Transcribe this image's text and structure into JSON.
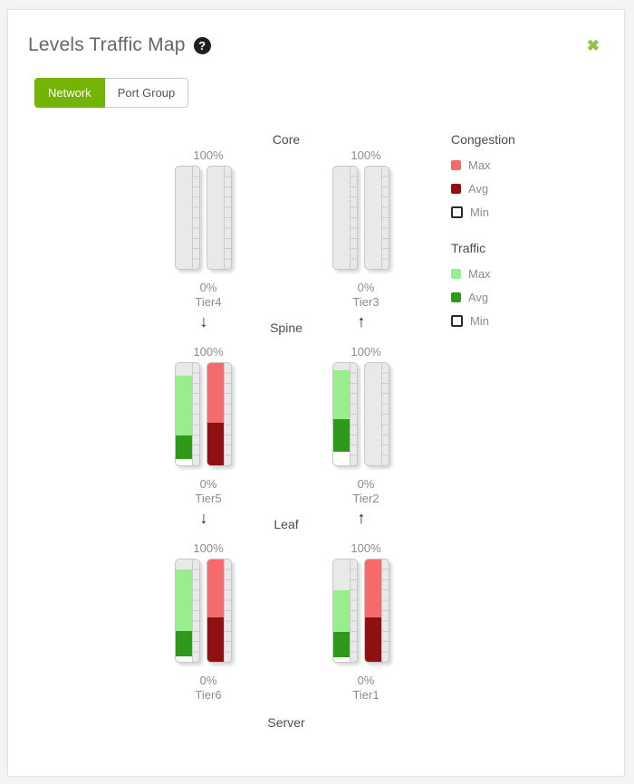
{
  "dialog": {
    "title": "Levels Traffic Map",
    "help_glyph": "?",
    "close_glyph": "✖"
  },
  "tabs": [
    {
      "label": "Network",
      "active": true
    },
    {
      "label": "Port Group",
      "active": false
    }
  ],
  "legend": {
    "groups": [
      {
        "title": "Congestion",
        "items": [
          {
            "label": "Max",
            "color": "#f56b6b",
            "outlined": false
          },
          {
            "label": "Avg",
            "color": "#8e1010",
            "outlined": false
          },
          {
            "label": "Min",
            "color": "#ffffff",
            "outlined": true
          }
        ]
      },
      {
        "title": "Traffic",
        "items": [
          {
            "label": "Max",
            "color": "#98ee8e",
            "outlined": false
          },
          {
            "label": "Avg",
            "color": "#2f991c",
            "outlined": false
          },
          {
            "label": "Min",
            "color": "#ffffff",
            "outlined": true
          }
        ]
      }
    ]
  },
  "map": {
    "sequence": [
      {
        "type": "label",
        "text": "Core"
      },
      {
        "type": "gauges",
        "items": [
          {
            "tier": "Tier4",
            "top_label": "100%",
            "bottom_label": "0%",
            "traffic": {
              "max": 0,
              "avg": 0,
              "min": 0
            },
            "congestion": {
              "max": 0,
              "avg": 0,
              "min": 0
            }
          },
          {
            "tier": "Tier3",
            "top_label": "100%",
            "bottom_label": "0%",
            "traffic": {
              "max": 0,
              "avg": 0,
              "min": 0
            },
            "congestion": {
              "max": 0,
              "avg": 0,
              "min": 0
            }
          }
        ]
      },
      {
        "type": "separator",
        "text": "Spine",
        "left_arrow": "↓",
        "right_arrow": "↑"
      },
      {
        "type": "gauges",
        "items": [
          {
            "tier": "Tier5",
            "top_label": "100%",
            "bottom_label": "0%",
            "traffic": {
              "max": 88,
              "avg": 29,
              "min": 6
            },
            "congestion": {
              "max": 100,
              "avg": 42,
              "min": 0
            }
          },
          {
            "tier": "Tier2",
            "top_label": "100%",
            "bottom_label": "0%",
            "traffic": {
              "max": 93,
              "avg": 45,
              "min": 13
            },
            "congestion": {
              "max": 0,
              "avg": 0,
              "min": 0
            }
          }
        ]
      },
      {
        "type": "separator",
        "text": "Leaf",
        "left_arrow": "↓",
        "right_arrow": "↑"
      },
      {
        "type": "gauges",
        "items": [
          {
            "tier": "Tier6",
            "top_label": "100%",
            "bottom_label": "0%",
            "traffic": {
              "max": 90,
              "avg": 30,
              "min": 5
            },
            "congestion": {
              "max": 100,
              "avg": 43,
              "min": 0
            }
          },
          {
            "tier": "Tier1",
            "top_label": "100%",
            "bottom_label": "0%",
            "traffic": {
              "max": 70,
              "avg": 29,
              "min": 4
            },
            "congestion": {
              "max": 100,
              "avg": 43,
              "min": 0
            }
          }
        ]
      },
      {
        "type": "label",
        "text": "Server"
      }
    ]
  },
  "colors": {
    "accent_green": "#74b405",
    "close_green": "#8cc63f",
    "congestion_max": "#f56b6b",
    "congestion_avg": "#8e1010",
    "traffic_max": "#98ee8e",
    "traffic_avg": "#2f991c",
    "min_fill": "#ffffff",
    "gauge_empty": "#e9e9e9"
  }
}
